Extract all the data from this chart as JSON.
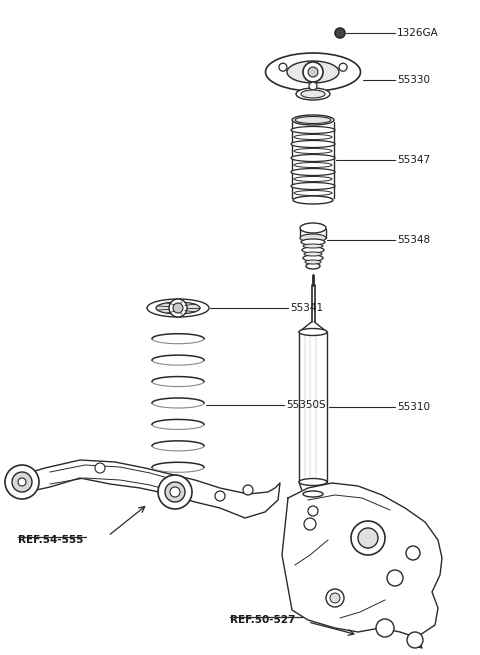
{
  "bg_color": "#ffffff",
  "line_color": "#2a2a2a",
  "label_color": "#1a1a1a",
  "lw": 1.0,
  "parts": {
    "bolt_label": "1326GA",
    "mount_label": "55330",
    "bump_stop_cover_label": "55347",
    "bump_stop_label": "55348",
    "shock_label": "55310",
    "spring_seat_label": "55341",
    "spring_label": "55350S",
    "ref1_label": "REF.54-555",
    "ref2_label": "REF.50-527"
  },
  "figsize": [
    4.8,
    6.55
  ],
  "dpi": 100
}
